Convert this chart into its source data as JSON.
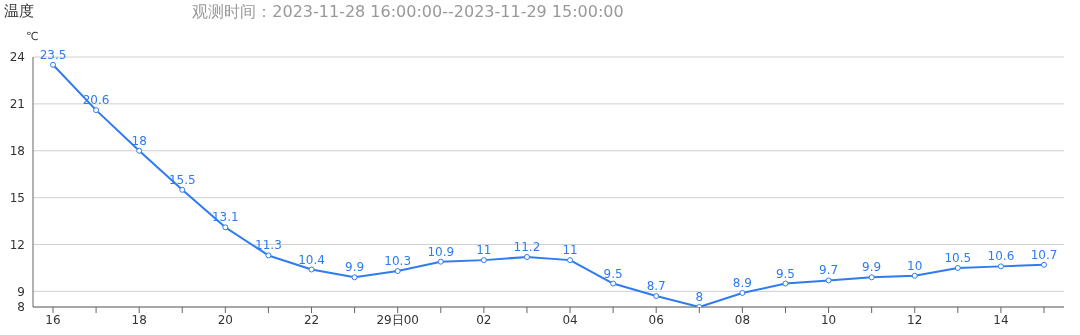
{
  "chart_data": {
    "type": "line",
    "title": "温度",
    "subtitle": "观测时间：2023-11-28 16:00:00--2023-11-29 15:00:00",
    "ylabel": "℃",
    "categories": [
      "16",
      null,
      "18",
      null,
      "20",
      null,
      "22",
      null,
      "29日00",
      null,
      "02",
      null,
      "04",
      null,
      "06",
      null,
      "08",
      null,
      "10",
      null,
      "12",
      null,
      "14",
      null
    ],
    "series": [
      {
        "color": "#2f7bf0",
        "values": [
          23.5,
          20.6,
          18,
          15.5,
          13.1,
          11.3,
          10.4,
          9.9,
          10.3,
          10.9,
          11,
          11.2,
          11,
          9.5,
          8.7,
          8,
          8.9,
          9.5,
          9.7,
          9.9,
          10,
          10.5,
          10.6,
          10.7
        ]
      }
    ],
    "ylim": [
      8,
      24
    ],
    "yticks": [
      8,
      9,
      12,
      15,
      18,
      21,
      24
    ],
    "grid": "y",
    "marker": "circle",
    "line_style": "solid",
    "data_labels": true
  }
}
